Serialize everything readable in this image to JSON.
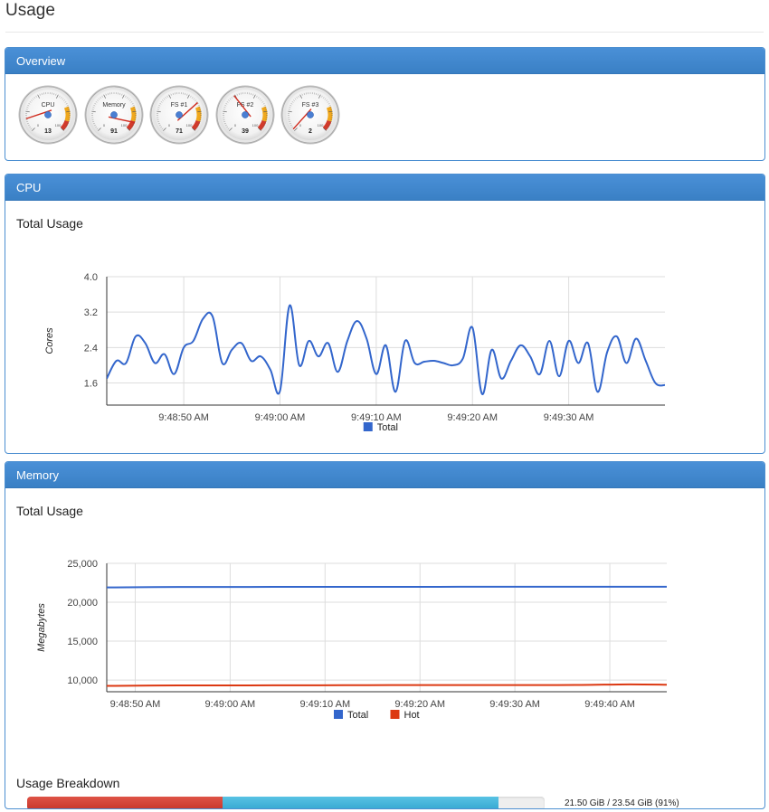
{
  "page": {
    "title": "Usage"
  },
  "overview": {
    "heading": "Overview",
    "gauges": [
      {
        "label": "CPU",
        "value": 13
      },
      {
        "label": "Memory",
        "value": 91
      },
      {
        "label": "FS #1",
        "value": 71
      },
      {
        "label": "FS #2",
        "value": 39
      },
      {
        "label": "FS #3",
        "value": 2
      }
    ],
    "gauge_scale": {
      "min": 0,
      "max": 100
    },
    "gauge_colors": {
      "warning": "#f0a81c",
      "danger": "#d23a2b",
      "needle": "#d02d20",
      "hub": "#4a7fd3"
    }
  },
  "cpu": {
    "heading": "CPU",
    "chart_title": "Total Usage"
  },
  "memory": {
    "heading": "Memory",
    "chart_title": "Total Usage",
    "breakdown_title": "Usage Breakdown",
    "breakdown_text": "21.50 GiB / 23.54 GiB (91%)",
    "breakdown": {
      "hot_fraction": 0.378,
      "cold_fraction": 0.533
    },
    "breakdown_colors": {
      "hot": "#d23a2b",
      "cold": "#3fb0d8"
    }
  },
  "chart_data": [
    {
      "type": "line",
      "ylabel": "Cores",
      "xlabel": "",
      "ylim": [
        1.1,
        4.0
      ],
      "yticks": [
        "4.0",
        "3.2",
        "2.4",
        "1.6"
      ],
      "ytick_values": [
        4.0,
        3.2,
        2.4,
        1.6
      ],
      "xlim": [
        0,
        58
      ],
      "xticks": [
        "9:48:50 AM",
        "9:49:00 AM",
        "9:49:10 AM",
        "9:49:20 AM",
        "9:49:30 AM"
      ],
      "xtick_values": [
        8,
        18,
        28,
        38,
        48
      ],
      "grid": true,
      "legend": "bottom",
      "series": [
        {
          "name": "Total",
          "color": "#3366cc",
          "x": [
            0,
            1,
            2,
            3,
            4,
            5,
            6,
            7,
            8,
            9,
            10,
            11,
            12,
            13,
            14,
            15,
            16,
            17,
            18,
            19,
            20,
            21,
            22,
            23,
            24,
            25,
            26,
            27,
            28,
            29,
            30,
            31,
            32,
            33,
            34,
            35,
            36,
            37,
            38,
            39,
            40,
            41,
            42,
            43,
            44,
            45,
            46,
            47,
            48,
            49,
            50,
            51,
            52,
            53,
            54,
            55,
            56,
            57,
            58
          ],
          "values": [
            1.7,
            2.1,
            2.05,
            2.65,
            2.5,
            2.05,
            2.25,
            1.8,
            2.4,
            2.55,
            3.05,
            3.1,
            2.05,
            2.35,
            2.5,
            2.1,
            2.2,
            1.9,
            1.42,
            3.35,
            2.0,
            2.55,
            2.2,
            2.5,
            1.85,
            2.55,
            3.0,
            2.6,
            1.8,
            2.45,
            1.4,
            2.55,
            2.05,
            2.08,
            2.1,
            2.05,
            2.0,
            2.15,
            2.85,
            1.35,
            2.35,
            1.7,
            2.1,
            2.45,
            2.2,
            1.8,
            2.55,
            1.75,
            2.55,
            2.05,
            2.5,
            1.4,
            2.3,
            2.65,
            2.05,
            2.6,
            2.1,
            1.6,
            1.55
          ]
        }
      ]
    },
    {
      "type": "line",
      "ylabel": "Megabytes",
      "xlabel": "",
      "ylim": [
        8500,
        25000
      ],
      "yticks": [
        "25,000",
        "20,000",
        "15,000",
        "10,000"
      ],
      "ytick_values": [
        25000,
        20000,
        15000,
        10000
      ],
      "xlim": [
        0,
        59
      ],
      "xticks": [
        "9:48:50 AM",
        "9:49:00 AM",
        "9:49:10 AM",
        "9:49:20 AM",
        "9:49:30 AM",
        "9:49:40 AM"
      ],
      "xtick_values": [
        3,
        13,
        23,
        33,
        43,
        53
      ],
      "grid": true,
      "legend": "bottom",
      "series": [
        {
          "name": "Total",
          "color": "#3366cc",
          "x": [
            0,
            5,
            10,
            15,
            20,
            25,
            30,
            35,
            40,
            45,
            50,
            55,
            59
          ],
          "values": [
            21900,
            21950,
            21960,
            21970,
            21980,
            21985,
            21985,
            21985,
            21990,
            21990,
            21995,
            22000,
            21990
          ]
        },
        {
          "name": "Hot",
          "color": "#dc3912",
          "x": [
            0,
            5,
            10,
            15,
            20,
            25,
            30,
            35,
            40,
            45,
            50,
            55,
            59
          ],
          "values": [
            9250,
            9300,
            9310,
            9320,
            9330,
            9340,
            9350,
            9350,
            9360,
            9360,
            9370,
            9450,
            9400
          ]
        }
      ]
    }
  ]
}
